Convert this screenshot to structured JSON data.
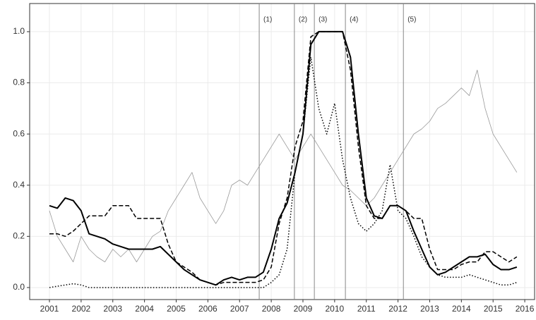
{
  "chart_data": {
    "type": "line",
    "x": [
      2001,
      2001.25,
      2001.5,
      2001.75,
      2002,
      2002.25,
      2002.5,
      2002.75,
      2003,
      2003.25,
      2003.5,
      2003.75,
      2004,
      2004.25,
      2004.5,
      2004.75,
      2005,
      2005.25,
      2005.5,
      2005.75,
      2006,
      2006.25,
      2006.5,
      2006.75,
      2007,
      2007.25,
      2007.5,
      2007.75,
      2008,
      2008.25,
      2008.5,
      2008.75,
      2009,
      2009.25,
      2009.5,
      2009.75,
      2010,
      2010.25,
      2010.5,
      2010.75,
      2011,
      2011.25,
      2011.5,
      2011.75,
      2012,
      2012.25,
      2012.5,
      2012.75,
      2013,
      2013.25,
      2013.5,
      2013.75,
      2014,
      2014.25,
      2014.5,
      2014.75,
      2015,
      2015.25,
      2015.5,
      2015.75
    ],
    "series": [
      {
        "color": "#999999",
        "style": "thin",
        "values": [
          0.3,
          0.2,
          0.15,
          0.1,
          0.2,
          0.15,
          0.12,
          0.1,
          0.15,
          0.12,
          0.15,
          0.1,
          0.15,
          0.2,
          0.22,
          0.3,
          0.35,
          0.4,
          0.45,
          0.35,
          0.3,
          0.25,
          0.3,
          0.4,
          0.42,
          0.4,
          0.45,
          0.5,
          0.55,
          0.6,
          0.55,
          0.5,
          0.55,
          0.6,
          0.55,
          0.5,
          0.45,
          0.4,
          0.38,
          0.35,
          0.32,
          0.35,
          0.4,
          0.45,
          0.5,
          0.55,
          0.6,
          0.62,
          0.65,
          0.7,
          0.72,
          0.75,
          0.78,
          0.75,
          0.85,
          0.7,
          0.6,
          0.55,
          0.5,
          0.45
        ]
      },
      {
        "color": "#000000",
        "style": "dotted",
        "values": [
          0,
          0.005,
          0.01,
          0.015,
          0.01,
          0,
          0,
          0,
          0,
          0,
          0,
          0,
          0,
          0,
          0,
          0,
          0,
          0,
          0,
          0,
          0,
          0,
          0,
          0,
          0,
          0,
          0,
          0,
          0.02,
          0.05,
          0.15,
          0.45,
          0.6,
          0.9,
          0.7,
          0.6,
          0.72,
          0.5,
          0.35,
          0.25,
          0.22,
          0.25,
          0.3,
          0.48,
          0.3,
          0.27,
          0.2,
          0.12,
          0.08,
          0.05,
          0.04,
          0.04,
          0.04,
          0.05,
          0.04,
          0.03,
          0.02,
          0.01,
          0.01,
          0.02
        ]
      },
      {
        "color": "#000000",
        "style": "dashed",
        "values": [
          0.21,
          0.21,
          0.2,
          0.22,
          0.25,
          0.28,
          0.28,
          0.28,
          0.32,
          0.32,
          0.32,
          0.27,
          0.27,
          0.27,
          0.27,
          0.17,
          0.1,
          0.08,
          0.06,
          0.03,
          0.02,
          0.01,
          0.02,
          0.02,
          0.02,
          0.02,
          0.02,
          0.03,
          0.08,
          0.25,
          0.35,
          0.55,
          0.65,
          0.98,
          1.0,
          1.0,
          1.0,
          1.0,
          0.85,
          0.55,
          0.32,
          0.27,
          0.27,
          0.32,
          0.32,
          0.3,
          0.27,
          0.27,
          0.15,
          0.07,
          0.07,
          0.07,
          0.09,
          0.1,
          0.1,
          0.14,
          0.14,
          0.12,
          0.1,
          0.12
        ]
      },
      {
        "color": "#000000",
        "style": "solid",
        "values": [
          0.32,
          0.31,
          0.35,
          0.34,
          0.3,
          0.21,
          0.2,
          0.19,
          0.17,
          0.16,
          0.15,
          0.15,
          0.15,
          0.15,
          0.16,
          0.13,
          0.1,
          0.07,
          0.05,
          0.03,
          0.02,
          0.01,
          0.03,
          0.04,
          0.03,
          0.04,
          0.04,
          0.06,
          0.15,
          0.27,
          0.33,
          0.45,
          0.6,
          0.95,
          1.0,
          1.0,
          1.0,
          1.0,
          0.9,
          0.6,
          0.35,
          0.28,
          0.27,
          0.32,
          0.32,
          0.3,
          0.22,
          0.15,
          0.08,
          0.05,
          0.06,
          0.08,
          0.1,
          0.12,
          0.12,
          0.13,
          0.09,
          0.07,
          0.07,
          0.08
        ]
      }
    ],
    "events": [
      {
        "label": "(1)",
        "x": 2007.62
      },
      {
        "label": "(2)",
        "x": 2008.73
      },
      {
        "label": "(3)",
        "x": 2009.36
      },
      {
        "label": "(4)",
        "x": 2010.34
      },
      {
        "label": "(5)",
        "x": 2012.17
      }
    ],
    "xlim": [
      2000.376,
      2016.31
    ],
    "xticks": [
      2001,
      2002,
      2003,
      2004,
      2005,
      2006,
      2007,
      2008,
      2009,
      2010,
      2011,
      2012,
      2013,
      2014,
      2015,
      2016
    ],
    "ylim": [
      -0.047,
      1.11
    ],
    "yticks": [
      {
        "value": 0,
        "label": "0.0"
      },
      {
        "value": 0.2,
        "label": "0.2"
      },
      {
        "value": 0.4,
        "label": "0.4"
      },
      {
        "value": 0.6,
        "label": "0.6"
      },
      {
        "value": 0.8,
        "label": "0.8"
      },
      {
        "value": 1,
        "label": "1.0"
      }
    ],
    "grid": true
  }
}
